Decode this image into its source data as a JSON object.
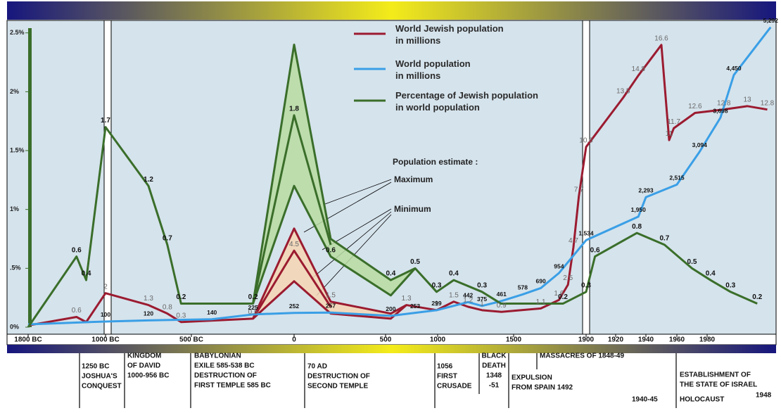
{
  "chart_data": {
    "type": "line",
    "xlim": [
      -1800,
      2000
    ],
    "xticks": [
      {
        "value": -1800,
        "label": "1800 BC"
      },
      {
        "value": -1000,
        "label": "1000 BC"
      },
      {
        "value": -500,
        "label": "500 BC"
      },
      0,
      500,
      1000,
      1500,
      1900,
      1920,
      1940,
      1960,
      1980
    ],
    "ylim": [
      0,
      2.6
    ],
    "yticks": [
      {
        "value": 0,
        "label": "0%"
      },
      {
        "value": 0.5,
        "label": ".5%"
      },
      {
        "value": 1,
        "label": "1%"
      },
      {
        "value": 1.5,
        "label": "1.5%"
      },
      {
        "value": 2,
        "label": "2%"
      },
      {
        "value": 2.5,
        "label": "2.5%"
      }
    ],
    "y2lim": [
      0,
      18
    ],
    "y3lim": [
      0,
      5400
    ],
    "series": [
      {
        "name": "World Jewish population\nin millions",
        "color": "#9b1b30",
        "axis": "y2",
        "x": [
          -1800,
          -1300,
          -1200,
          -1000,
          -750,
          -640,
          -560,
          -200,
          0,
          200,
          550,
          700,
          990,
          1106,
          1200,
          1292,
          1420,
          1650,
          1750,
          1800,
          1830,
          1860,
          1900,
          1925,
          1935,
          1950,
          1955,
          1958,
          1972,
          1985,
          1992,
          1998
        ],
        "values": [
          0.1,
          0.6,
          0.3,
          2,
          1.3,
          0.8,
          0.3,
          0.5,
          5.8,
          1.5,
          0.8,
          1.3,
          1,
          1.5,
          1.2,
          1,
          0.9,
          1.1,
          1.6,
          2.5,
          4.7,
          7.7,
          10.6,
          13.5,
          14.8,
          16.6,
          11,
          11.7,
          12.6,
          12.8,
          13,
          12.8
        ],
        "value_labels": [
          null,
          "0.6",
          null,
          "2",
          "1.3",
          "0.8",
          "0.3",
          "0.5",
          null,
          "1.5",
          null,
          "1.3",
          "1",
          "1.5",
          "1.2",
          "1",
          "0.9",
          "1.1",
          "1.6",
          "2.5",
          "4.7",
          "7.7",
          "10.6",
          "13.5",
          "14.8",
          "16.6",
          "11",
          "11.7",
          "12.6",
          "12.8",
          "13",
          "12.8"
        ]
      },
      {
        "color": "#9b1b30",
        "axis": "y2",
        "x": [
          -200,
          0,
          200
        ],
        "values": [
          0.5,
          4.5,
          1.2
        ],
        "value_labels": [
          null,
          "4.5",
          null
        ]
      },
      {
        "color": "#9b1b30",
        "axis": "y2",
        "x": [
          -200,
          0,
          200,
          550,
          700
        ],
        "values": [
          0.5,
          2.7,
          0.8,
          0.5,
          1.3
        ]
      },
      {
        "name": "World population\nin millions",
        "color": "#3a9fe6",
        "axis": "y3",
        "x": [
          -1800,
          -1000,
          -750,
          -400,
          -200,
          0,
          200,
          550,
          784,
          990,
          1200,
          1292,
          1420,
          1550,
          1650,
          1750,
          1900,
          1935,
          1940,
          1960,
          1975,
          1984,
          1988,
          1999
        ],
        "values": [
          50,
          100,
          120,
          140,
          225,
          252,
          257,
          200,
          253,
          299,
          442,
          375,
          461,
          578,
          690,
          954,
          1534,
          1950,
          2293,
          2515,
          3094,
          3698,
          4450,
          5292
        ],
        "value_labels": [
          null,
          "100",
          "120",
          "140",
          "225",
          "252",
          "257",
          "200",
          "253",
          "299",
          "442",
          "375",
          "461",
          "578",
          "690",
          "954",
          "1,534",
          "1,950",
          "2,293",
          "2,515",
          "3,094",
          "3,698",
          "4,450",
          "5,292"
        ]
      },
      {
        "name": "Percentage of Jewish population\nin world population",
        "color": "#3a6e2a",
        "axis": "y",
        "x": [
          -1800,
          -1300,
          -1200,
          -1000,
          -750,
          -640,
          -560,
          -200,
          0,
          200,
          550,
          784,
          990,
          1106,
          1292,
          1417,
          1597,
          1772,
          1900,
          1906,
          1934,
          1952,
          1970,
          1981,
          1987,
          1995
        ],
        "values": [
          0,
          0.6,
          0.4,
          1.7,
          1.2,
          0.7,
          0.2,
          0.2,
          2.4,
          0.75,
          0.4,
          0.5,
          0.3,
          0.4,
          0.3,
          0.2,
          0.2,
          0.2,
          0.3,
          0.6,
          0.8,
          0.7,
          0.5,
          0.4,
          0.3,
          0.2
        ],
        "value_labels": [
          null,
          "0.6",
          "0.4",
          "1.7",
          "1.2",
          "0.7",
          "0.2",
          "0.2",
          null,
          null,
          "0.4",
          "0.5",
          "0.3",
          "0.4",
          "0.3",
          null,
          null,
          "0.2",
          "0.3",
          "0.6",
          "0.8",
          "0.7",
          "0.5",
          "0.4",
          "0.3",
          "0.2"
        ]
      },
      {
        "color": "#3a6e2a",
        "axis": "y",
        "x": [
          -200,
          0,
          200
        ],
        "values": [
          0.2,
          1.8,
          0.7
        ],
        "value_labels": [
          null,
          "1.8",
          null
        ]
      },
      {
        "color": "#3a6e2a",
        "axis": "y",
        "x": [
          -200,
          0,
          200,
          550,
          784
        ],
        "values": [
          0.2,
          1.2,
          0.6,
          0.27,
          0.5
        ],
        "value_labels": [
          null,
          null,
          "0.6",
          null,
          null
        ]
      }
    ],
    "annotations": [
      "Population estimate :",
      "Maximum",
      "Minimum"
    ],
    "events": [
      [
        "1250 BC",
        "JOSHUA'S",
        "CONQUEST"
      ],
      [
        "KINGDOM",
        "OF DAVID",
        "1000-956 BC"
      ],
      [
        "BABYLONIAN",
        "EXILE  585-538 BC",
        "DESTRUCTION OF",
        "FIRST TEMPLE  585 BC"
      ],
      [
        "70 AD",
        "DESTRUCTION OF",
        "SECOND TEMPLE"
      ],
      [
        "1056",
        "FIRST",
        "CRUSADE"
      ],
      [
        "BLACK",
        "DEATH",
        "1348",
        "-51"
      ],
      [
        "MASSACRES OF 1848-49"
      ],
      [
        "EXPULSION",
        "FROM SPAIN 1492"
      ],
      [
        "1940-45"
      ],
      [
        "ESTABLISHMENT OF",
        "THE STATE OF ISRAEL"
      ],
      [
        "HOLOCAUST"
      ],
      [
        "1948"
      ]
    ]
  }
}
